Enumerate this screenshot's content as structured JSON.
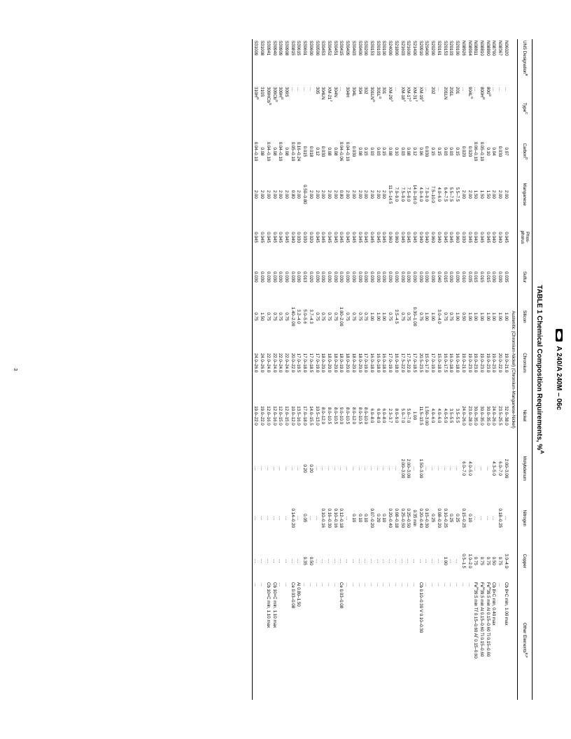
{
  "standard_header": "A 240/A 240M – 06c",
  "page_number": "3",
  "table": {
    "type": "table",
    "title": "TABLE 1 Chemical Composition Requirements, %",
    "title_sup": "A",
    "background_color": "#ffffff",
    "text_color": "#000000",
    "border_color": "#000000",
    "title_fontsize": 10,
    "body_fontsize": 6.2,
    "col_widths_pct": [
      7,
      7,
      6,
      7,
      6,
      6,
      6,
      8,
      8,
      8,
      7,
      6,
      18
    ],
    "columns": [
      {
        "label": "UNS Designation",
        "sup": "B"
      },
      {
        "label": "Type",
        "sup": "C"
      },
      {
        "label": "Carbon",
        "sup": "D"
      },
      {
        "label": "Manganese",
        "sup": ""
      },
      {
        "label": "Phos-\nphorus",
        "sup": ""
      },
      {
        "label": "Sulfur",
        "sup": ""
      },
      {
        "label": "Silicon",
        "sup": ""
      },
      {
        "label": "Chromium",
        "sup": ""
      },
      {
        "label": "Nickel",
        "sup": ""
      },
      {
        "label": "Molybdenum",
        "sup": ""
      },
      {
        "label": "Nitrogen",
        "sup": ""
      },
      {
        "label": "Copper",
        "sup": ""
      },
      {
        "label": "Other Elements",
        "sup": "E,F"
      }
    ],
    "section_label": "Austenitic (Chromium-Nickel) (Chromium-Manganese-Nickel)",
    "rows": [
      [
        "N06020",
        "…",
        "0.07",
        "2.00",
        "0.045",
        "0.035",
        "1.00",
        "19.0–21.0",
        "32.0–38.0",
        "2.00–3.00",
        "…",
        "3.0–4.0",
        "Cb 8×C min, 1.00 max"
      ],
      [
        "N08367",
        "…",
        "0.030",
        "2.00",
        "0.040",
        "0.030",
        "1.00",
        "20.0–22.0",
        "23.5–25.5",
        "6.0–7.0",
        "0.18–0.25",
        "0.75",
        "…"
      ],
      [
        "N08700",
        "…",
        "0.04",
        "2.00",
        "0.040",
        "0.030",
        "1.00",
        "19.0–23.0",
        "24.0–26.0",
        "4.3–5.0",
        "…",
        "0.50",
        "Cb 8×C min, 0.40 max"
      ],
      [
        "N08800",
        "800<sup>G</sup>",
        "0.10",
        "1.50",
        "0.045",
        "0.015",
        "1.00",
        "19.0–23.0",
        "30.0–35.0",
        "…",
        "…",
        "0.75",
        "Fe<sup>H</sup>39.5 min Al 0.15–0.60 Ti 0.15–0.60"
      ],
      [
        "N08810",
        "800H<sup>G</sup>",
        "0.05–0.10",
        "1.50",
        "0.045",
        "0.015",
        "1.00",
        "19.0–23.0",
        "30.0–35.0",
        "…",
        "…",
        "0.75",
        "Fe<sup>H</sup>39.5 min Al 0.15–0.60 Ti 0.15–0.60"
      ],
      [
        "N08811",
        "…",
        "0.06–0.10",
        "1.50",
        "0.040",
        "0.015",
        "1.00",
        "19.0–23.0",
        "30.0–35.0",
        "…",
        "…",
        "0.75",
        "Fe<sup>H</sup>39.5 min Ti<sup>I</sup> 0.15–0.60 Al<sup>I</sup> 0.15–0.60"
      ],
      [
        "N08904",
        "904L<sup>G</sup>",
        "0.020",
        "2.00",
        "0.045",
        "0.035",
        "1.00",
        "19.0–23.0",
        "23.0–28.0",
        "4.0–5.0",
        "0.10",
        "1.0–2.0",
        "…"
      ],
      [
        "N08926",
        "…",
        "0.020",
        "2.00",
        "0.030",
        "0.010",
        "0.50",
        "19.0–21.0",
        "24.0–26.0",
        "6.0–7.0",
        "0.15–0.25",
        "0.5–1.5",
        "…"
      ],
      [
        "S20100",
        "201",
        "0.15",
        "5.5–7.5",
        "0.060",
        "0.030",
        "1.00",
        "16.0–18.0",
        "3.5–5.5",
        "…",
        "0.25",
        "…",
        "…"
      ],
      [
        "S20103",
        "201L",
        "0.03",
        "5.5–7.5",
        "0.045",
        "0.030",
        "0.75",
        "16.0–18.0",
        "3.5–5.5",
        "…",
        "0.25",
        "…",
        "…"
      ],
      [
        "S20153",
        "201LN",
        "0.03",
        "6.4–7.5",
        "0.045",
        "0.015",
        "0.75",
        "16.0–17.5",
        "4.0–5.0",
        "…",
        "0.10–0.25",
        "1.00",
        "…"
      ],
      [
        "S20161",
        "…",
        "0.15",
        "4.0–6.0",
        "0.040",
        "0.040",
        "3.0–4.0",
        "15.0–18.0",
        "4.0–6.0",
        "…",
        "0.08–0.20",
        "…",
        "…"
      ],
      [
        "S20200",
        "202",
        "0.15",
        "7.5–10.0",
        "0.060",
        "0.030",
        "1.00",
        "17.0–19.0",
        "4.0–6.0",
        "…",
        "0.25",
        "…",
        "…"
      ],
      [
        "S20400",
        "…",
        "0.030",
        "7.0–9.0",
        "0.040",
        "0.030",
        "1.00",
        "15.0–17.0",
        "1.50–3.00",
        "…",
        "0.15–0.30",
        "…",
        "…"
      ],
      [
        "S20910",
        "XM-19<sup>J</sup>",
        "0.06",
        "4.0–6.0",
        "0.040",
        "0.030",
        "0.75",
        "20.5–23.5",
        "11.5–13.5",
        "1.50–3.00",
        "0.20–0.40",
        "…",
        "Cb 0.10–0.30 V 0.10–0.30"
      ],
      [
        "S21400",
        "XM-31<sup>J</sup>",
        "0.12",
        "14.0–16.0",
        "0.045",
        "0.030",
        "0.30–1.00",
        "17.0–18.5",
        "1.00",
        "…",
        "0.35 min",
        "…",
        "…"
      ],
      [
        "S21600",
        "XM-17<sup>J</sup>",
        "0.08",
        "7.5–9.0",
        "0.045",
        "0.030",
        "0.75",
        "17.5–22.0",
        "5.0–7.0",
        "2.00–3.00",
        "0.25–0.50",
        "…",
        "…"
      ],
      [
        "S21603",
        "XM-18<sup>J</sup>",
        "0.03",
        "7.5–9.0",
        "0.045",
        "0.030",
        "0.75",
        "17.5–22.0",
        "5.0–7.0",
        "2.00–3.00",
        "0.25–0.50",
        "…",
        "…"
      ],
      [
        "S21800",
        "…",
        "0.10",
        "7.0–9.0",
        "0.060",
        "0.030",
        "3.5–4.5",
        "16.0–18.0",
        "8.0–9.0",
        "…",
        "0.08–0.18",
        "…",
        "…"
      ],
      [
        "S24000",
        "XM-29<sup>J</sup>",
        "0.08",
        "11.5–14.5",
        "0.060",
        "0.030",
        "0.75",
        "17.0–19.0",
        "2.3–3.7",
        "…",
        "0.20–0.40",
        "…",
        "…"
      ],
      [
        "S30100",
        "301",
        "0.15",
        "2.00",
        "0.045",
        "0.030",
        "1.00",
        "16.0–18.0",
        "6.0–8.0",
        "…",
        "0.10",
        "…",
        "…"
      ],
      [
        "S30103",
        "301L<sup>G</sup>",
        "0.03",
        "2.00",
        "0.045",
        "0.030",
        "1.00",
        "16.0–18.0",
        "6.0–8.0",
        "…",
        "0.20",
        "…",
        "…"
      ],
      [
        "S30153",
        "301LN<sup>G</sup>",
        "0.03",
        "2.00",
        "0.045",
        "0.030",
        "1.00",
        "16.0–18.0",
        "6.0–8.0",
        "…",
        "0.07–0.20",
        "…",
        "…"
      ],
      [
        "S30200",
        "302",
        "0.15",
        "2.00",
        "0.045",
        "0.030",
        "0.75",
        "17.0–19.0",
        "8.0–10.0",
        "…",
        "0.10",
        "…",
        "…"
      ],
      [
        "S30400",
        "304",
        "0.08",
        "2.00",
        "0.045",
        "0.030",
        "0.75",
        "18.0–20.0",
        "8.0–10.5",
        "…",
        "0.10",
        "…",
        "…"
      ],
      [
        "S30403",
        "304L",
        "0.030",
        "2.00",
        "0.045",
        "0.030",
        "0.75",
        "18.0–20.0",
        "8.0–12.0",
        "…",
        "0.10",
        "…",
        "…"
      ],
      [
        "S30409",
        "304H",
        "0.04–0.10",
        "2.00",
        "0.045",
        "0.030",
        "0.75",
        "18.0–20.0",
        "8.0–10.5",
        "…",
        "…",
        "…",
        "…"
      ],
      [
        "S30415",
        "…",
        "0.04–0.06",
        "0.80",
        "0.045",
        "0.030",
        "1.00–2.00",
        "18.0–19.0",
        "9.0–10.0",
        "…",
        "0.12–0.18",
        "…",
        "Ce 0.03–0.08"
      ],
      [
        "S30451",
        "304N",
        "0.08",
        "2.00",
        "0.045",
        "0.030",
        "0.75",
        "18.0–20.0",
        "8.0–10.5",
        "…",
        "0.10–0.16",
        "…",
        "…"
      ],
      [
        "S30452",
        "XM-21<sup>J</sup>",
        "0.08",
        "2.00",
        "0.045",
        "0.030",
        "0.75",
        "18.0–20.0",
        "8.0–10.5",
        "…",
        "0.16–0.30",
        "…",
        "…"
      ],
      [
        "S30453",
        "304LN",
        "0.030",
        "2.00",
        "0.045",
        "0.030",
        "0.75",
        "18.0–20.0",
        "8.0–12.0",
        "…",
        "0.10–0.16",
        "…",
        "…"
      ],
      [
        "S30500",
        "305",
        "0.12",
        "2.00",
        "0.045",
        "0.030",
        "0.75",
        "17.0–19.0",
        "10.5–13.0",
        "…",
        "…",
        "…",
        "…"
      ],
      [
        "S30600",
        "…",
        "0.018",
        "2.00",
        "0.020",
        "0.020",
        "3.7–4.3",
        "17.0–18.5",
        "14.0–15.5",
        "0.20",
        "…",
        "0.50",
        "…"
      ],
      [
        "S30601",
        "…",
        "0.015",
        "0.50–0.80",
        "0.030",
        "0.013",
        "5.0–5.6",
        "17.0–18.0",
        "17.0–18.0",
        "0.20",
        "0.05",
        "0.35",
        "…"
      ],
      [
        "S30615",
        "…",
        "0.16–0.24",
        "2.00",
        "0.030",
        "0.030",
        "3.2–4.0",
        "17.0–19.5",
        "13.5–16.0",
        "…",
        "…",
        "…",
        "Al 0.80–1.50"
      ],
      [
        "S30815",
        "…",
        "0.05–0.10",
        "0.80",
        "0.040",
        "0.030",
        "1.40–2.00",
        "20.0–22.0",
        "10.0–12.0",
        "…",
        "0.14–0.20",
        "…",
        "Ce 0.03–0.08"
      ],
      [
        "S30908",
        "309S",
        "0.08",
        "2.00",
        "0.045",
        "0.030",
        "0.75",
        "22.0–24.0",
        "12.0–15.0",
        "…",
        "…",
        "…",
        "…"
      ],
      [
        "S30909",
        "309H<sup>G</sup>",
        "0.04–0.10",
        "2.00",
        "0.045",
        "0.030",
        "0.75",
        "22.0–24.0",
        "12.0–15.0",
        "…",
        "…",
        "…",
        "…"
      ],
      [
        "S30940",
        "309Cb<sup>G</sup>",
        "0.08",
        "2.00",
        "0.045",
        "0.030",
        "0.75",
        "22.0–24.0",
        "12.0–16.0",
        "…",
        "…",
        "…",
        "Cb 10×C min, 1.10 max"
      ],
      [
        "S30941",
        "309HCb<sup>G</sup>",
        "0.04–0.10",
        "2.00",
        "0.045",
        "0.030",
        "0.75",
        "22.0–24.0",
        "12.0–16.0",
        "…",
        "…",
        "…",
        "Cb 10×C min, 1.10 max"
      ],
      [
        "S31008",
        "310S",
        "0.08",
        "2.00",
        "0.045",
        "0.030",
        "1.50",
        "24.0–26.0",
        "19.0–22.0",
        "…",
        "…",
        "…",
        "…"
      ],
      [
        "S31009",
        "310H<sup>G</sup>",
        "0.04–0.10",
        "2.00",
        "0.045",
        "0.030",
        "0.75",
        "24.0–26.0",
        "19.0–22.0",
        "…",
        "…",
        "…",
        "…"
      ]
    ]
  }
}
